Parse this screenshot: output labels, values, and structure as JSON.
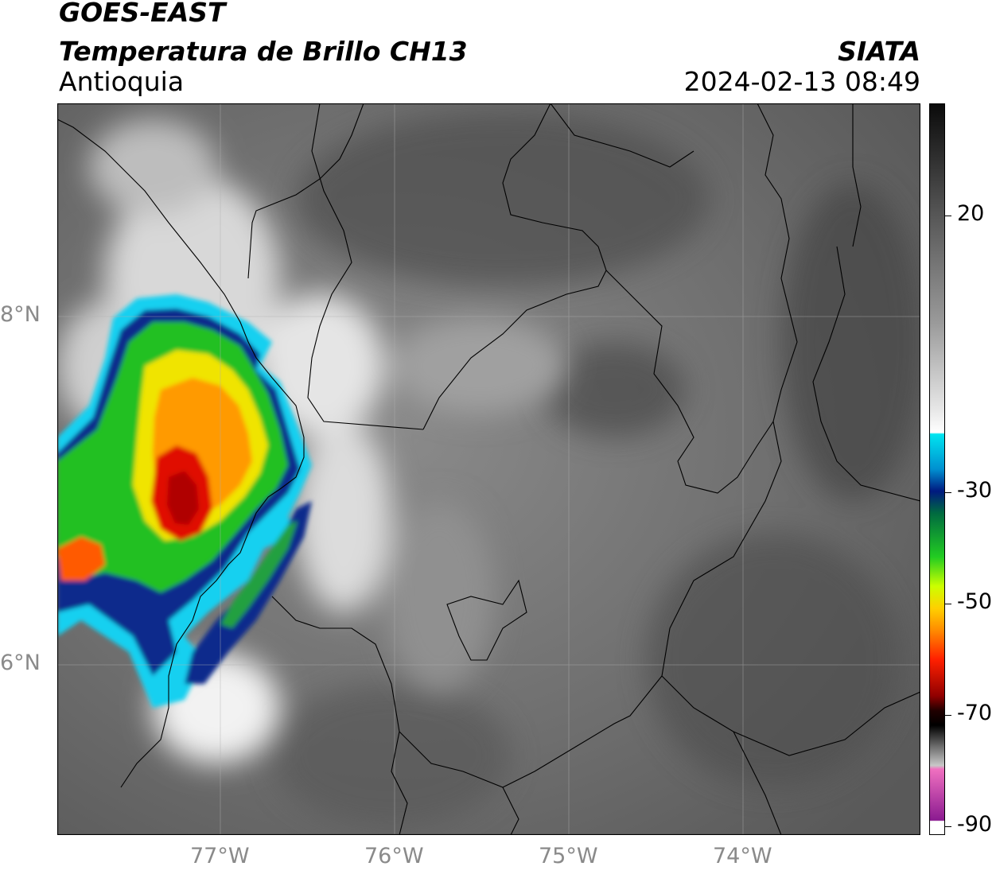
{
  "header": {
    "satellite": "GOES-EAST",
    "product": "Temperatura de Brillo CH13",
    "region": "Antioquia",
    "agency": "SIATA",
    "datetime": "2024-02-13 08:49"
  },
  "map": {
    "lon_range": [
      -77.95,
      -73.0
    ],
    "lat_range": [
      5.05,
      9.25
    ],
    "lat_ticks": [
      {
        "value": 8,
        "label": "8°N"
      },
      {
        "value": 6,
        "label": "6°N"
      }
    ],
    "lon_ticks": [
      {
        "value": -77,
        "label": "77°W"
      },
      {
        "value": -76,
        "label": "76°W"
      },
      {
        "value": -75,
        "label": "75°W"
      },
      {
        "value": -74,
        "label": "74°W"
      }
    ],
    "gridlines": true,
    "background_color": "#6e6e6e",
    "storm_core_color": "#d40000"
  },
  "colorbar": {
    "ticks": [
      {
        "value": 20,
        "label": "20"
      },
      {
        "value": -30,
        "label": "-30"
      },
      {
        "value": -50,
        "label": "-50"
      },
      {
        "value": -70,
        "label": "-70"
      },
      {
        "value": -90,
        "label": "-90"
      }
    ],
    "stops": [
      {
        "offset": 0.0,
        "color": "#0a0a0a"
      },
      {
        "offset": 0.15,
        "color": "#555555"
      },
      {
        "offset": 0.3,
        "color": "#9a9a9a"
      },
      {
        "offset": 0.42,
        "color": "#e8e8e8"
      },
      {
        "offset": 0.45,
        "color": "#ffffff"
      },
      {
        "offset": 0.452,
        "color": "#00e5f0"
      },
      {
        "offset": 0.5,
        "color": "#0090d0"
      },
      {
        "offset": 0.53,
        "color": "#001a80"
      },
      {
        "offset": 0.56,
        "color": "#006a40"
      },
      {
        "offset": 0.62,
        "color": "#22cc22"
      },
      {
        "offset": 0.66,
        "color": "#ccff00"
      },
      {
        "offset": 0.69,
        "color": "#ffd000"
      },
      {
        "offset": 0.72,
        "color": "#ff8c00"
      },
      {
        "offset": 0.76,
        "color": "#ff2000"
      },
      {
        "offset": 0.81,
        "color": "#900000"
      },
      {
        "offset": 0.83,
        "color": "#200000"
      },
      {
        "offset": 0.85,
        "color": "#000000"
      },
      {
        "offset": 0.88,
        "color": "#707070"
      },
      {
        "offset": 0.905,
        "color": "#c8c8c8"
      },
      {
        "offset": 0.91,
        "color": "#f070c0"
      },
      {
        "offset": 0.98,
        "color": "#8a1a90"
      },
      {
        "offset": 0.981,
        "color": "#ffffff"
      },
      {
        "offset": 1.0,
        "color": "#ffffff"
      }
    ]
  }
}
